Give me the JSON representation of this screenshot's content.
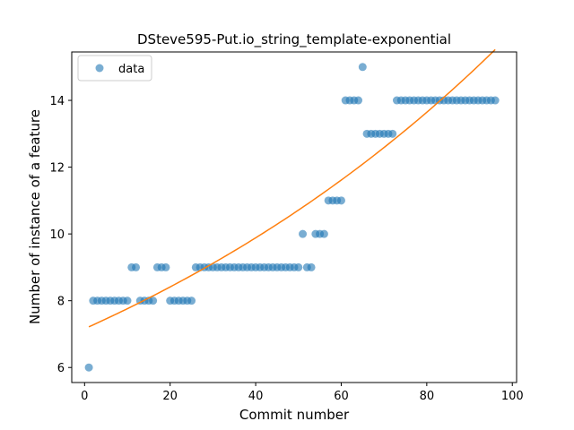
{
  "chart_data": {
    "type": "scatter",
    "title": "DSteve595-Put.io_string_template-exponential",
    "xlabel": "Commit number",
    "ylabel": "Number of instance of a feature",
    "xlim": [
      -3,
      101
    ],
    "ylim": [
      5.55,
      15.45
    ],
    "xticks": [
      0,
      20,
      40,
      60,
      80,
      100
    ],
    "yticks": [
      6,
      8,
      10,
      12,
      14
    ],
    "grid": false,
    "legend_position": "top-left",
    "series": [
      {
        "name": "data",
        "kind": "scatter",
        "color": "#1f77b4",
        "x": [
          1,
          2,
          3,
          4,
          5,
          6,
          7,
          8,
          9,
          10,
          11,
          12,
          13,
          14,
          15,
          16,
          17,
          18,
          19,
          20,
          21,
          22,
          23,
          24,
          25,
          26,
          27,
          28,
          29,
          30,
          31,
          32,
          33,
          34,
          35,
          36,
          37,
          38,
          39,
          40,
          41,
          42,
          43,
          44,
          45,
          46,
          47,
          48,
          49,
          50,
          51,
          52,
          53,
          54,
          55,
          56,
          57,
          58,
          59,
          60,
          61,
          62,
          63,
          64,
          65,
          66,
          67,
          68,
          69,
          70,
          71,
          72,
          73,
          74,
          75,
          76,
          77,
          78,
          79,
          80,
          81,
          82,
          83,
          84,
          85,
          86,
          87,
          88,
          89,
          90,
          91,
          92,
          93,
          94,
          95,
          96
        ],
        "y": [
          6,
          8,
          8,
          8,
          8,
          8,
          8,
          8,
          8,
          8,
          9,
          9,
          8,
          8,
          8,
          8,
          9,
          9,
          9,
          8,
          8,
          8,
          8,
          8,
          8,
          9,
          9,
          9,
          9,
          9,
          9,
          9,
          9,
          9,
          9,
          9,
          9,
          9,
          9,
          9,
          9,
          9,
          9,
          9,
          9,
          9,
          9,
          9,
          9,
          9,
          10,
          9,
          9,
          10,
          10,
          10,
          11,
          11,
          11,
          11,
          14,
          14,
          14,
          14,
          15,
          13,
          13,
          13,
          13,
          13,
          13,
          13,
          14,
          14,
          14,
          14,
          14,
          14,
          14,
          14,
          14,
          14,
          14,
          14,
          14,
          14,
          14,
          14,
          14,
          14,
          14,
          14,
          14,
          14,
          14,
          14
        ]
      },
      {
        "name": "",
        "kind": "line",
        "color": "#ff7f0e",
        "fit": {
          "a": 7.16,
          "b": 0.00806
        },
        "x_range": [
          1,
          96
        ]
      }
    ]
  }
}
